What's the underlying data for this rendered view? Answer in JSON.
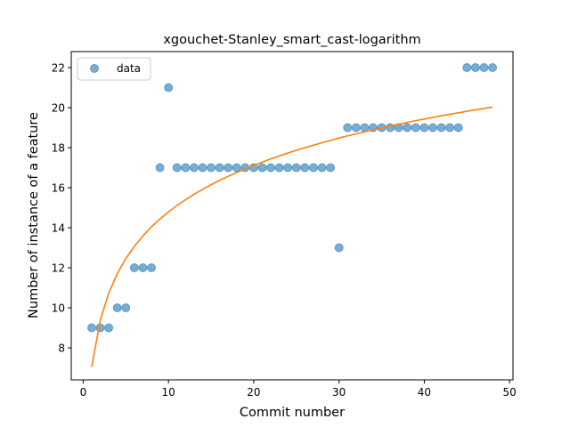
{
  "chart_data": {
    "type": "scatter",
    "title": "xgouchet-Stanley_smart_cast-logarithm",
    "xlabel": "Commit number",
    "ylabel": "Number of instance of a feature",
    "xlim": [
      -1.4,
      50.4
    ],
    "ylim": [
      6.4,
      22.8
    ],
    "xticks": [
      0,
      10,
      20,
      30,
      40,
      50
    ],
    "yticks": [
      8,
      10,
      12,
      14,
      16,
      18,
      20,
      22
    ],
    "grid": false,
    "legend_position": "upper-left",
    "series": [
      {
        "name": "data",
        "kind": "scatter",
        "color": "#1f77b4",
        "x": [
          1,
          2,
          3,
          4,
          5,
          6,
          7,
          8,
          9,
          10,
          11,
          12,
          13,
          14,
          15,
          16,
          17,
          18,
          19,
          20,
          21,
          22,
          23,
          24,
          25,
          26,
          27,
          28,
          29,
          30,
          31,
          32,
          33,
          34,
          35,
          36,
          37,
          38,
          39,
          40,
          41,
          42,
          43,
          44,
          45,
          46,
          47,
          48
        ],
        "y": [
          9,
          9,
          9,
          10,
          10,
          12,
          12,
          12,
          17,
          21,
          17,
          17,
          17,
          17,
          17,
          17,
          17,
          17,
          17,
          17,
          17,
          17,
          17,
          17,
          17,
          17,
          17,
          17,
          17,
          13,
          19,
          19,
          19,
          19,
          19,
          19,
          19,
          19,
          19,
          19,
          19,
          19,
          19,
          19,
          22,
          22,
          22,
          22
        ]
      },
      {
        "kind": "line",
        "color": "#ff7f0e",
        "x": [
          1,
          2,
          3,
          4,
          5,
          6,
          7,
          8,
          9,
          10,
          11,
          12,
          13,
          14,
          15,
          16,
          17,
          18,
          19,
          20,
          21,
          22,
          23,
          24,
          25,
          26,
          27,
          28,
          29,
          30,
          31,
          32,
          33,
          34,
          35,
          36,
          37,
          38,
          39,
          40,
          41,
          42,
          43,
          44,
          45,
          46,
          47,
          48
        ],
        "y": [
          7.05,
          9.38,
          10.74,
          11.71,
          12.46,
          13.07,
          13.59,
          14.04,
          14.44,
          14.79,
          15.11,
          15.4,
          15.67,
          15.92,
          16.15,
          16.37,
          16.57,
          16.76,
          16.94,
          17.12,
          17.28,
          17.44,
          17.59,
          17.73,
          17.87,
          18.0,
          18.12,
          18.25,
          18.36,
          18.48,
          18.59,
          18.69,
          18.79,
          18.89,
          18.99,
          19.08,
          19.17,
          19.26,
          19.35,
          19.43,
          19.51,
          19.59,
          19.67,
          19.74,
          19.82,
          19.89,
          19.96,
          20.03
        ]
      }
    ]
  }
}
